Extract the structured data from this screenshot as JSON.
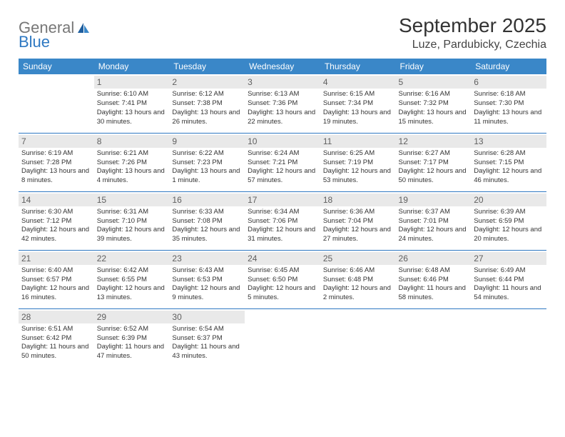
{
  "logo": {
    "text1": "General",
    "text2": "Blue"
  },
  "header": {
    "title": "September 2025",
    "subtitle": "Luze, Pardubicky, Czechia"
  },
  "colors": {
    "header_bg": "#3a87c8",
    "header_text": "#ffffff",
    "daynum_bg": "#e9e9e9",
    "daynum_text": "#606060",
    "divider": "#2e78c2"
  },
  "weekdays": [
    "Sunday",
    "Monday",
    "Tuesday",
    "Wednesday",
    "Thursday",
    "Friday",
    "Saturday"
  ],
  "weeks": [
    [
      null,
      {
        "n": "1",
        "sr": "Sunrise: 6:10 AM",
        "ss": "Sunset: 7:41 PM",
        "dl": "Daylight: 13 hours and 30 minutes."
      },
      {
        "n": "2",
        "sr": "Sunrise: 6:12 AM",
        "ss": "Sunset: 7:38 PM",
        "dl": "Daylight: 13 hours and 26 minutes."
      },
      {
        "n": "3",
        "sr": "Sunrise: 6:13 AM",
        "ss": "Sunset: 7:36 PM",
        "dl": "Daylight: 13 hours and 22 minutes."
      },
      {
        "n": "4",
        "sr": "Sunrise: 6:15 AM",
        "ss": "Sunset: 7:34 PM",
        "dl": "Daylight: 13 hours and 19 minutes."
      },
      {
        "n": "5",
        "sr": "Sunrise: 6:16 AM",
        "ss": "Sunset: 7:32 PM",
        "dl": "Daylight: 13 hours and 15 minutes."
      },
      {
        "n": "6",
        "sr": "Sunrise: 6:18 AM",
        "ss": "Sunset: 7:30 PM",
        "dl": "Daylight: 13 hours and 11 minutes."
      }
    ],
    [
      {
        "n": "7",
        "sr": "Sunrise: 6:19 AM",
        "ss": "Sunset: 7:28 PM",
        "dl": "Daylight: 13 hours and 8 minutes."
      },
      {
        "n": "8",
        "sr": "Sunrise: 6:21 AM",
        "ss": "Sunset: 7:26 PM",
        "dl": "Daylight: 13 hours and 4 minutes."
      },
      {
        "n": "9",
        "sr": "Sunrise: 6:22 AM",
        "ss": "Sunset: 7:23 PM",
        "dl": "Daylight: 13 hours and 1 minute."
      },
      {
        "n": "10",
        "sr": "Sunrise: 6:24 AM",
        "ss": "Sunset: 7:21 PM",
        "dl": "Daylight: 12 hours and 57 minutes."
      },
      {
        "n": "11",
        "sr": "Sunrise: 6:25 AM",
        "ss": "Sunset: 7:19 PM",
        "dl": "Daylight: 12 hours and 53 minutes."
      },
      {
        "n": "12",
        "sr": "Sunrise: 6:27 AM",
        "ss": "Sunset: 7:17 PM",
        "dl": "Daylight: 12 hours and 50 minutes."
      },
      {
        "n": "13",
        "sr": "Sunrise: 6:28 AM",
        "ss": "Sunset: 7:15 PM",
        "dl": "Daylight: 12 hours and 46 minutes."
      }
    ],
    [
      {
        "n": "14",
        "sr": "Sunrise: 6:30 AM",
        "ss": "Sunset: 7:12 PM",
        "dl": "Daylight: 12 hours and 42 minutes."
      },
      {
        "n": "15",
        "sr": "Sunrise: 6:31 AM",
        "ss": "Sunset: 7:10 PM",
        "dl": "Daylight: 12 hours and 39 minutes."
      },
      {
        "n": "16",
        "sr": "Sunrise: 6:33 AM",
        "ss": "Sunset: 7:08 PM",
        "dl": "Daylight: 12 hours and 35 minutes."
      },
      {
        "n": "17",
        "sr": "Sunrise: 6:34 AM",
        "ss": "Sunset: 7:06 PM",
        "dl": "Daylight: 12 hours and 31 minutes."
      },
      {
        "n": "18",
        "sr": "Sunrise: 6:36 AM",
        "ss": "Sunset: 7:04 PM",
        "dl": "Daylight: 12 hours and 27 minutes."
      },
      {
        "n": "19",
        "sr": "Sunrise: 6:37 AM",
        "ss": "Sunset: 7:01 PM",
        "dl": "Daylight: 12 hours and 24 minutes."
      },
      {
        "n": "20",
        "sr": "Sunrise: 6:39 AM",
        "ss": "Sunset: 6:59 PM",
        "dl": "Daylight: 12 hours and 20 minutes."
      }
    ],
    [
      {
        "n": "21",
        "sr": "Sunrise: 6:40 AM",
        "ss": "Sunset: 6:57 PM",
        "dl": "Daylight: 12 hours and 16 minutes."
      },
      {
        "n": "22",
        "sr": "Sunrise: 6:42 AM",
        "ss": "Sunset: 6:55 PM",
        "dl": "Daylight: 12 hours and 13 minutes."
      },
      {
        "n": "23",
        "sr": "Sunrise: 6:43 AM",
        "ss": "Sunset: 6:53 PM",
        "dl": "Daylight: 12 hours and 9 minutes."
      },
      {
        "n": "24",
        "sr": "Sunrise: 6:45 AM",
        "ss": "Sunset: 6:50 PM",
        "dl": "Daylight: 12 hours and 5 minutes."
      },
      {
        "n": "25",
        "sr": "Sunrise: 6:46 AM",
        "ss": "Sunset: 6:48 PM",
        "dl": "Daylight: 12 hours and 2 minutes."
      },
      {
        "n": "26",
        "sr": "Sunrise: 6:48 AM",
        "ss": "Sunset: 6:46 PM",
        "dl": "Daylight: 11 hours and 58 minutes."
      },
      {
        "n": "27",
        "sr": "Sunrise: 6:49 AM",
        "ss": "Sunset: 6:44 PM",
        "dl": "Daylight: 11 hours and 54 minutes."
      }
    ],
    [
      {
        "n": "28",
        "sr": "Sunrise: 6:51 AM",
        "ss": "Sunset: 6:42 PM",
        "dl": "Daylight: 11 hours and 50 minutes."
      },
      {
        "n": "29",
        "sr": "Sunrise: 6:52 AM",
        "ss": "Sunset: 6:39 PM",
        "dl": "Daylight: 11 hours and 47 minutes."
      },
      {
        "n": "30",
        "sr": "Sunrise: 6:54 AM",
        "ss": "Sunset: 6:37 PM",
        "dl": "Daylight: 11 hours and 43 minutes."
      },
      null,
      null,
      null,
      null
    ]
  ]
}
